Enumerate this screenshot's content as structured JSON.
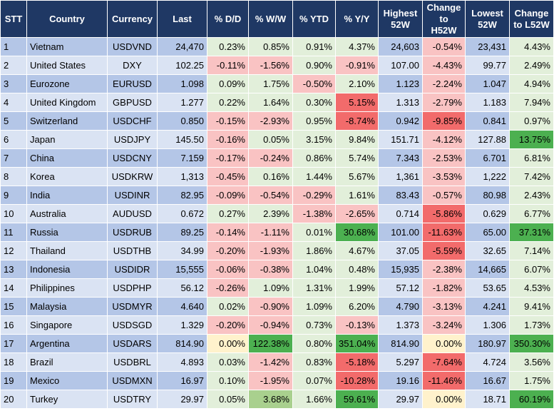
{
  "table": {
    "header": [
      "STT",
      "Country",
      "Currency",
      "Last",
      "% D/D",
      "% W/W",
      "% YTD",
      "% Y/Y",
      "Highest 52W",
      "Change to H52W",
      "Lowest 52W",
      "Change to L52W"
    ],
    "rows": [
      [
        "1",
        "Vietnam",
        "USDVND",
        "24,470",
        "0.23%",
        "0.85%",
        "0.91%",
        "4.37%",
        "24,603",
        "-0.54%",
        "23,431",
        "4.43%"
      ],
      [
        "2",
        "United States",
        "DXY",
        "102.25",
        "-0.11%",
        "-1.56%",
        "0.90%",
        "-0.91%",
        "107.00",
        "-4.43%",
        "99.77",
        "2.49%"
      ],
      [
        "3",
        "Eurozone",
        "EURUSD",
        "1.098",
        "0.09%",
        "1.75%",
        "-0.50%",
        "2.10%",
        "1.123",
        "-2.24%",
        "1.047",
        "4.94%"
      ],
      [
        "4",
        "United Kingdom",
        "GBPUSD",
        "1.277",
        "0.22%",
        "1.64%",
        "0.30%",
        "5.15%",
        "1.313",
        "-2.79%",
        "1.183",
        "7.94%"
      ],
      [
        "5",
        "Switzerland",
        "USDCHF",
        "0.850",
        "-0.15%",
        "-2.93%",
        "0.95%",
        "-8.74%",
        "0.942",
        "-9.85%",
        "0.841",
        "0.97%"
      ],
      [
        "6",
        "Japan",
        "USDJPY",
        "145.50",
        "-0.16%",
        "0.05%",
        "3.15%",
        "9.84%",
        "151.71",
        "-4.12%",
        "127.88",
        "13.75%"
      ],
      [
        "7",
        "China",
        "USDCNY",
        "7.159",
        "-0.17%",
        "-0.24%",
        "0.86%",
        "5.74%",
        "7.343",
        "-2.53%",
        "6.701",
        "6.81%"
      ],
      [
        "8",
        "Korea",
        "USDKRW",
        "1,313",
        "-0.45%",
        "0.16%",
        "1.44%",
        "5.67%",
        "1,361",
        "-3.53%",
        "1,222",
        "7.42%"
      ],
      [
        "9",
        "India",
        "USDINR",
        "82.95",
        "-0.09%",
        "-0.54%",
        "-0.29%",
        "1.61%",
        "83.43",
        "-0.57%",
        "80.98",
        "2.43%"
      ],
      [
        "10",
        "Australia",
        "AUDUSD",
        "0.672",
        "0.27%",
        "2.39%",
        "-1.38%",
        "-2.65%",
        "0.714",
        "-5.86%",
        "0.629",
        "6.77%"
      ],
      [
        "11",
        "Russia",
        "USDRUB",
        "89.25",
        "-0.14%",
        "-1.11%",
        "0.01%",
        "30.68%",
        "101.00",
        "-11.63%",
        "65.00",
        "37.31%"
      ],
      [
        "12",
        "Thailand",
        "USDTHB",
        "34.99",
        "-0.20%",
        "-1.93%",
        "1.86%",
        "4.67%",
        "37.05",
        "-5.59%",
        "32.65",
        "7.14%"
      ],
      [
        "13",
        "Indonesia",
        "USDIDR",
        "15,555",
        "-0.06%",
        "-0.38%",
        "1.04%",
        "0.48%",
        "15,935",
        "-2.38%",
        "14,665",
        "6.07%"
      ],
      [
        "14",
        "Philippines",
        "USDPHP",
        "56.12",
        "-0.26%",
        "1.09%",
        "1.31%",
        "1.99%",
        "57.12",
        "-1.82%",
        "53.65",
        "4.53%"
      ],
      [
        "15",
        "Malaysia",
        "USDMYR",
        "4.640",
        "0.02%",
        "-0.90%",
        "1.09%",
        "6.20%",
        "4.790",
        "-3.13%",
        "4.241",
        "9.41%"
      ],
      [
        "16",
        "Singapore",
        "USDSGD",
        "1.329",
        "-0.20%",
        "-0.94%",
        "0.73%",
        "-0.13%",
        "1.373",
        "-3.24%",
        "1.306",
        "1.73%"
      ],
      [
        "17",
        "Argentina",
        "USDARS",
        "814.90",
        "0.00%",
        "122.38%",
        "0.80%",
        "351.04%",
        "814.90",
        "0.00%",
        "180.97",
        "350.30%"
      ],
      [
        "18",
        "Brazil",
        "USDBRL",
        "4.893",
        "0.03%",
        "-1.42%",
        "0.83%",
        "-5.18%",
        "5.297",
        "-7.64%",
        "4.724",
        "3.56%"
      ],
      [
        "19",
        "Mexico",
        "USDMXN",
        "16.97",
        "0.10%",
        "-1.95%",
        "0.07%",
        "-10.28%",
        "19.16",
        "-11.46%",
        "16.67",
        "1.75%"
      ],
      [
        "20",
        "Turkey",
        "USDTRY",
        "29.97",
        "0.05%",
        "3.68%",
        "1.66%",
        "59.61%",
        "29.97",
        "0.00%",
        "18.71",
        "60.19%"
      ]
    ]
  }
}
